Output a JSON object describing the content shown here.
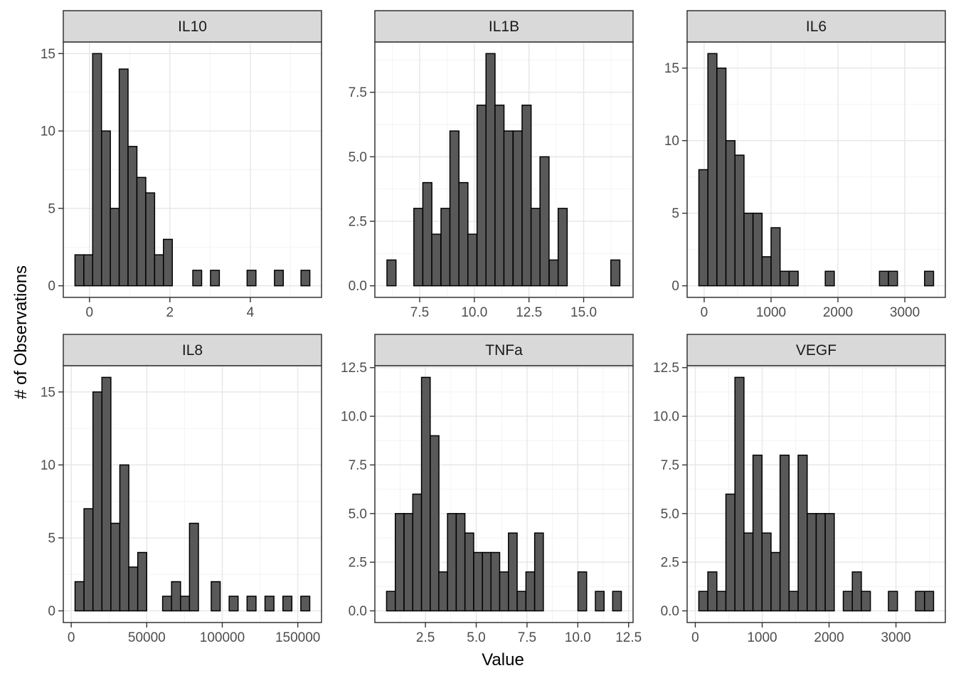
{
  "figure": {
    "ylabel": "# of Observations",
    "xlabel": "Value"
  },
  "style": {
    "bar_fill": "#595959",
    "bar_stroke": "#000000",
    "strip_bg": "#d9d9d9",
    "panel_bg": "#ffffff",
    "panel_border": "#333333",
    "grid_major": "#e6e6e6",
    "grid_minor": "#f2f2f2",
    "tick_mark": "#333333",
    "tick_label": "#4d4d4d"
  },
  "chart_data": [
    {
      "type": "bar",
      "subtype": "histogram",
      "title": "IL10",
      "bin_width": 0.22,
      "xlim": [
        -0.65,
        5.77
      ],
      "ylim": [
        -0.75,
        15.75
      ],
      "x_ticks": {
        "values": [
          0,
          2,
          4
        ],
        "labels": [
          "0",
          "2",
          "4"
        ]
      },
      "y_ticks": {
        "values": [
          0,
          5,
          10,
          15
        ],
        "labels": [
          "0",
          "5",
          "10",
          "15"
        ]
      },
      "bars": [
        [
          -0.25,
          2
        ],
        [
          -0.03,
          2
        ],
        [
          0.19,
          15
        ],
        [
          0.41,
          10
        ],
        [
          0.63,
          5
        ],
        [
          0.85,
          14
        ],
        [
          1.07,
          9
        ],
        [
          1.29,
          7
        ],
        [
          1.51,
          6
        ],
        [
          1.73,
          2
        ],
        [
          1.95,
          3
        ],
        [
          2.68,
          1
        ],
        [
          3.12,
          1
        ],
        [
          4.03,
          1
        ],
        [
          4.71,
          1
        ],
        [
          5.37,
          1
        ]
      ]
    },
    {
      "type": "bar",
      "subtype": "histogram",
      "title": "IL1B",
      "bin_width": 0.413,
      "xlim": [
        5.45,
        17.26
      ],
      "ylim": [
        -0.45,
        9.45
      ],
      "x_ticks": {
        "values": [
          7.5,
          10.0,
          12.5,
          15.0
        ],
        "labels": [
          "7.5",
          "10.0",
          "12.5",
          "15.0"
        ]
      },
      "y_ticks": {
        "values": [
          0,
          2.5,
          5.0,
          7.5
        ],
        "labels": [
          "0.0",
          "2.5",
          "5.0",
          "7.5"
        ]
      },
      "bars": [
        [
          6.21,
          1
        ],
        [
          7.44,
          3
        ],
        [
          7.85,
          4
        ],
        [
          8.26,
          2
        ],
        [
          8.68,
          3
        ],
        [
          9.09,
          6
        ],
        [
          9.5,
          4
        ],
        [
          9.91,
          2
        ],
        [
          10.33,
          7
        ],
        [
          10.74,
          9
        ],
        [
          11.15,
          7
        ],
        [
          11.56,
          6
        ],
        [
          11.98,
          6
        ],
        [
          12.39,
          7
        ],
        [
          12.8,
          3
        ],
        [
          13.21,
          5
        ],
        [
          13.63,
          1
        ],
        [
          14.04,
          3
        ],
        [
          16.45,
          1
        ]
      ]
    },
    {
      "type": "bar",
      "subtype": "histogram",
      "title": "IL6",
      "bin_width": 135,
      "xlim": [
        -255,
        3606
      ],
      "ylim": [
        -0.8,
        16.8
      ],
      "x_ticks": {
        "values": [
          0,
          1000,
          2000,
          3000
        ],
        "labels": [
          "0",
          "1000",
          "2000",
          "3000"
        ]
      },
      "y_ticks": {
        "values": [
          0,
          5,
          10,
          15
        ],
        "labels": [
          "0",
          "5",
          "10",
          "15"
        ]
      },
      "bars": [
        [
          -12,
          8
        ],
        [
          123,
          16
        ],
        [
          258,
          15
        ],
        [
          393,
          10
        ],
        [
          528,
          9
        ],
        [
          663,
          5
        ],
        [
          798,
          5
        ],
        [
          933,
          2
        ],
        [
          1068,
          4
        ],
        [
          1203,
          1
        ],
        [
          1338,
          1
        ],
        [
          1878,
          1
        ],
        [
          2688,
          1
        ],
        [
          2823,
          1
        ],
        [
          3363,
          1
        ]
      ]
    },
    {
      "type": "bar",
      "subtype": "histogram",
      "title": "IL8",
      "bin_width": 5930,
      "xlim": [
        -5235,
        165695
      ],
      "ylim": [
        -0.8,
        16.8
      ],
      "x_ticks": {
        "values": [
          0,
          50000,
          100000,
          150000
        ],
        "labels": [
          "0",
          "50000",
          "100000",
          "150000"
        ]
      },
      "y_ticks": {
        "values": [
          0,
          5,
          10,
          15
        ],
        "labels": [
          "0",
          "5",
          "10",
          "15"
        ]
      },
      "bars": [
        [
          5500,
          2
        ],
        [
          11430,
          7
        ],
        [
          17360,
          15
        ],
        [
          23290,
          16
        ],
        [
          29220,
          6
        ],
        [
          35150,
          10
        ],
        [
          41080,
          3
        ],
        [
          47010,
          4
        ],
        [
          63470,
          1
        ],
        [
          69400,
          2
        ],
        [
          75330,
          1
        ],
        [
          81260,
          6
        ],
        [
          95660,
          2
        ],
        [
          107520,
          1
        ],
        [
          119380,
          1
        ],
        [
          131240,
          1
        ],
        [
          143100,
          1
        ],
        [
          154960,
          1
        ]
      ]
    },
    {
      "type": "bar",
      "subtype": "histogram",
      "title": "TNFa",
      "bin_width": 0.428,
      "xlim": [
        0.01,
        12.72
      ],
      "ylim": [
        -0.6,
        12.6
      ],
      "x_ticks": {
        "values": [
          2.5,
          5.0,
          7.5,
          10.0,
          12.5
        ],
        "labels": [
          "2.5",
          "5.0",
          "7.5",
          "10.0",
          "12.5"
        ]
      },
      "y_ticks": {
        "values": [
          0,
          2.5,
          5.0,
          7.5,
          10.0,
          12.5
        ],
        "labels": [
          "0.0",
          "2.5",
          "5.0",
          "7.5",
          "10.0",
          "12.5"
        ]
      },
      "bars": [
        [
          0.8,
          1
        ],
        [
          1.23,
          5
        ],
        [
          1.66,
          5
        ],
        [
          2.09,
          6
        ],
        [
          2.52,
          12
        ],
        [
          2.95,
          9
        ],
        [
          3.37,
          2
        ],
        [
          3.8,
          5
        ],
        [
          4.23,
          5
        ],
        [
          4.66,
          4
        ],
        [
          5.09,
          3
        ],
        [
          5.52,
          3
        ],
        [
          5.94,
          3
        ],
        [
          6.37,
          2
        ],
        [
          6.8,
          4
        ],
        [
          7.23,
          1
        ],
        [
          7.66,
          2
        ],
        [
          8.09,
          4
        ],
        [
          10.22,
          2
        ],
        [
          11.08,
          1
        ],
        [
          11.93,
          1
        ]
      ]
    },
    {
      "type": "bar",
      "subtype": "histogram",
      "title": "VEGF",
      "bin_width": 135,
      "xlim": [
        -122,
        3738
      ],
      "ylim": [
        -0.6,
        12.6
      ],
      "x_ticks": {
        "values": [
          0,
          1000,
          2000,
          3000
        ],
        "labels": [
          "0",
          "1000",
          "2000",
          "3000"
        ]
      },
      "y_ticks": {
        "values": [
          0,
          2.5,
          5.0,
          7.5,
          10.0,
          12.5
        ],
        "labels": [
          "0.0",
          "2.5",
          "5.0",
          "7.5",
          "10.0",
          "12.5"
        ]
      },
      "bars": [
        [
          120,
          1
        ],
        [
          255,
          2
        ],
        [
          390,
          1
        ],
        [
          525,
          6
        ],
        [
          660,
          12
        ],
        [
          795,
          4
        ],
        [
          930,
          8
        ],
        [
          1065,
          4
        ],
        [
          1200,
          3
        ],
        [
          1335,
          8
        ],
        [
          1470,
          1
        ],
        [
          1605,
          8
        ],
        [
          1740,
          5
        ],
        [
          1875,
          5
        ],
        [
          2010,
          5
        ],
        [
          2280,
          1
        ],
        [
          2415,
          2
        ],
        [
          2550,
          1
        ],
        [
          2955,
          1
        ],
        [
          3360,
          1
        ],
        [
          3495,
          1
        ]
      ]
    }
  ]
}
